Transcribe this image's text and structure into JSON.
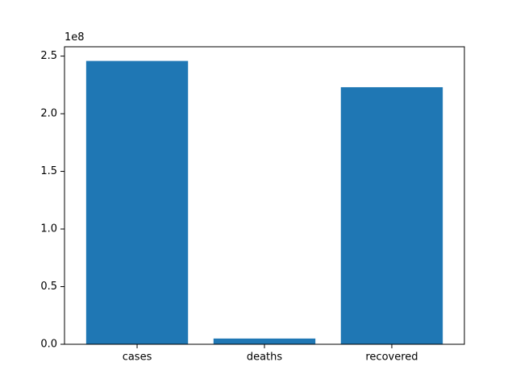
{
  "chart_data": {
    "type": "bar",
    "categories": [
      "cases",
      "deaths",
      "recovered"
    ],
    "values": [
      245800000,
      4980000,
      223000000
    ],
    "title": "",
    "xlabel": "",
    "ylabel": "",
    "ylim": [
      0,
      258100000
    ],
    "scale_multiplier_label": "1e8",
    "yticks": [
      0.0,
      50000000,
      100000000,
      150000000,
      200000000,
      250000000
    ],
    "ytick_labels": [
      "0.0",
      "0.5",
      "1.0",
      "1.5",
      "2.0",
      "2.5"
    ],
    "bar_color": "#1f77b4",
    "grid": false,
    "legend": "none"
  }
}
